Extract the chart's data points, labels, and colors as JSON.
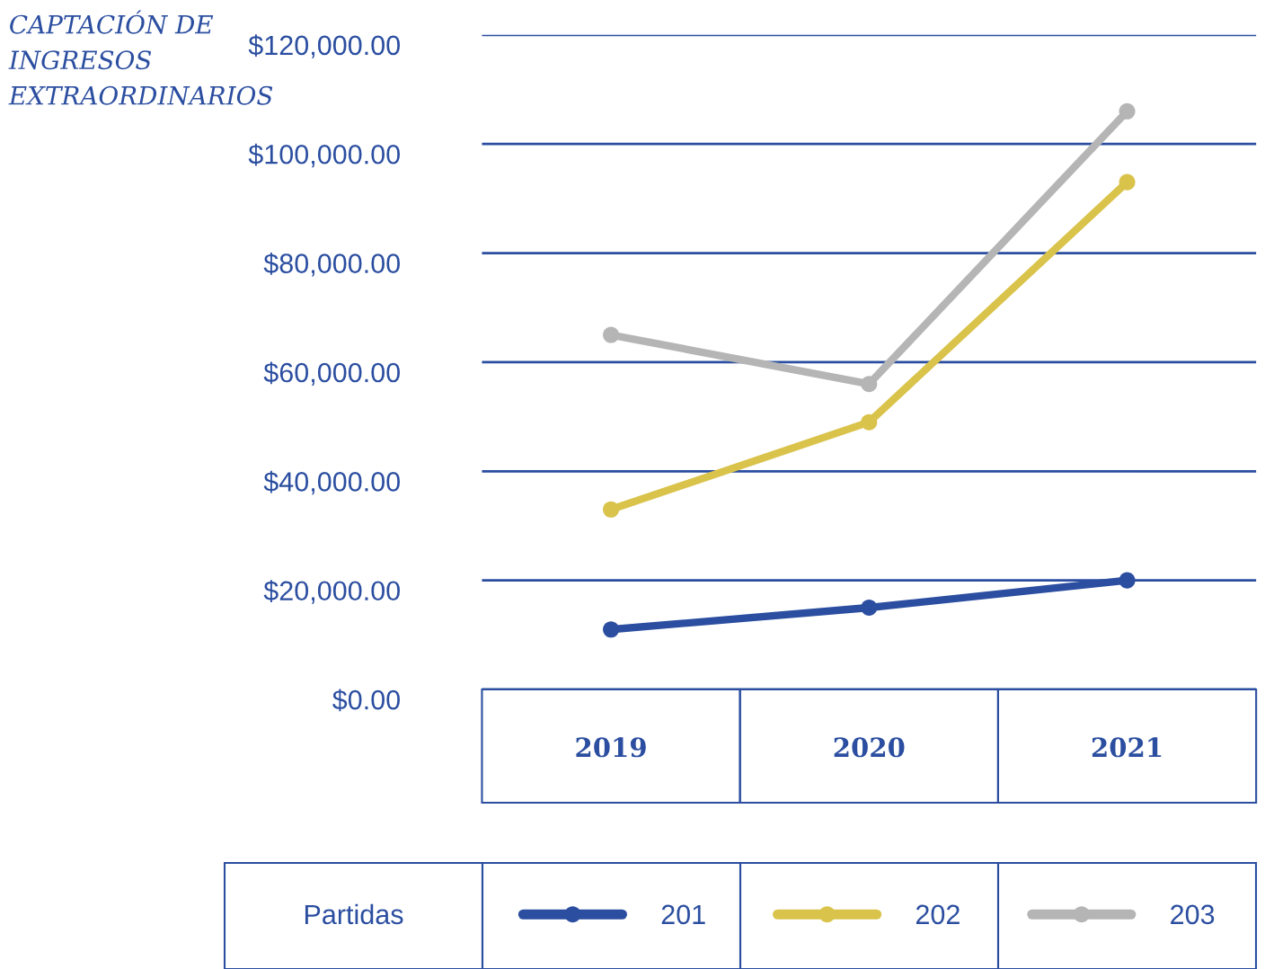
{
  "chart_data": {
    "type": "line",
    "title": "CAPTACIÓN DE INGRESOS EXTRAORDINARIOS",
    "categories": [
      "2019",
      "2020",
      "2021"
    ],
    "series": [
      {
        "name": "201",
        "color": "#2b4ea0",
        "values": [
          11000,
          15000,
          20000
        ]
      },
      {
        "name": "202",
        "color": "#d9c34b",
        "values": [
          33000,
          49000,
          93000
        ]
      },
      {
        "name": "203",
        "color": "#b5b5b5",
        "values": [
          65000,
          56000,
          106000
        ]
      }
    ],
    "legend_title": "Partidas",
    "ylim": [
      0,
      120000
    ],
    "yticks": [
      {
        "value": 0,
        "label": "$0.00"
      },
      {
        "value": 20000,
        "label": "$20,000.00"
      },
      {
        "value": 40000,
        "label": "$40,000.00"
      },
      {
        "value": 60000,
        "label": "$60,000.00"
      },
      {
        "value": 80000,
        "label": "$80,000.00"
      },
      {
        "value": 100000,
        "label": "$100,000.00"
      },
      {
        "value": 120000,
        "label": "$120,000.00"
      }
    ],
    "grid": "y",
    "legend": "bottom",
    "marker": "circle",
    "line_style": "solid"
  }
}
